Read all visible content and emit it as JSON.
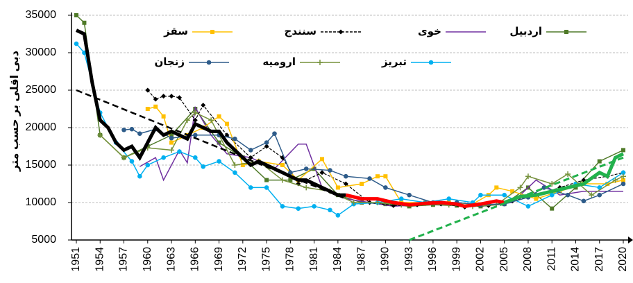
{
  "chart_data": {
    "type": "line",
    "y_label": "دبی اقلی بر حسب متر",
    "xlim": [
      1951,
      2020
    ],
    "ylim": [
      5000,
      35000
    ],
    "xticks": [
      1951,
      1954,
      1957,
      1960,
      1963,
      1966,
      1969,
      1972,
      1975,
      1978,
      1981,
      1984,
      1987,
      1990,
      1993,
      1996,
      1999,
      2002,
      2005,
      2008,
      2011,
      2014,
      2017,
      2020
    ],
    "yticks": [
      5000,
      10000,
      15000,
      20000,
      25000,
      30000,
      35000
    ],
    "grid": true,
    "series": [
      {
        "name": "اردبیل",
        "color": "#4f7a28",
        "marker": "square",
        "dash": false,
        "width": 1.5,
        "x": [
          1951,
          1952,
          1954,
          1957,
          1960,
          1963,
          1966,
          1969,
          1972,
          1975,
          1978,
          1981,
          1984,
          1987,
          1990,
          1993,
          1996,
          1999,
          2002,
          2005,
          2008,
          2011,
          2014,
          2017,
          2020
        ],
        "values": [
          35000,
          34000,
          19000,
          16000,
          17500,
          19000,
          22500,
          18000,
          16000,
          13000,
          13000,
          14500,
          11000,
          10000,
          9800,
          9500,
          9700,
          9600,
          9500,
          9800,
          12000,
          9200,
          12000,
          15500,
          17000
        ]
      },
      {
        "name": "خوی",
        "color": "#7030a0",
        "marker": "none",
        "dash": false,
        "width": 1.5,
        "x": [
          1959,
          1961,
          1962,
          1964,
          1965,
          1966,
          1968,
          1970,
          1973,
          1976,
          1979,
          1980,
          1982,
          1985,
          1988,
          1991,
          1994,
          1997,
          2000,
          2003,
          2006,
          2009,
          2012,
          2015,
          2018,
          2020
        ],
        "values": [
          14800,
          16000,
          13000,
          17000,
          15300,
          22700,
          19000,
          16500,
          16000,
          14500,
          17800,
          17800,
          12000,
          10500,
          10000,
          9500,
          9700,
          9800,
          9500,
          9700,
          10000,
          13000,
          11000,
          11500,
          11500,
          11500
        ]
      },
      {
        "name": "سنندج",
        "color": "#000000",
        "marker": "diamond",
        "dash": true,
        "width": 1.2,
        "x": [
          1960,
          1961,
          1962,
          1963,
          1964,
          1966,
          1967,
          1970,
          1973,
          1975,
          1977,
          1979,
          1982,
          1985,
          1988,
          1991,
          1994,
          1997,
          2000,
          2003,
          2006,
          2009,
          2012,
          2015,
          2018,
          2020
        ],
        "values": [
          25000,
          23800,
          24200,
          24200,
          24000,
          21000,
          23000,
          19000,
          16000,
          17500,
          16000,
          12500,
          14000,
          12500,
          10000,
          9600,
          9700,
          9800,
          9400,
          9600,
          10200,
          11000,
          12000,
          13000,
          13500,
          14000
        ]
      },
      {
        "name": "سقز",
        "color": "#ffc000",
        "marker": "square",
        "dash": false,
        "width": 1.5,
        "x": [
          1960,
          1961,
          1962,
          1963,
          1965,
          1967,
          1969,
          1970,
          1972,
          1974,
          1977,
          1979,
          1982,
          1984,
          1987,
          1989,
          1990,
          1992,
          1995,
          1998,
          2001,
          2003,
          2004,
          2006,
          2009,
          2012,
          2015,
          2018,
          2020
        ],
        "values": [
          22500,
          22800,
          21500,
          18000,
          19000,
          20000,
          21500,
          20500,
          15000,
          15500,
          15000,
          13000,
          15800,
          12000,
          12500,
          13500,
          13500,
          10000,
          10000,
          10000,
          9800,
          11000,
          12000,
          11500,
          10500,
          11500,
          12500,
          12500,
          13000
        ]
      },
      {
        "name": "تبریز",
        "color": "#00b0f0",
        "marker": "circle",
        "dash": false,
        "width": 1.5,
        "x": [
          1951,
          1952,
          1954,
          1956,
          1958,
          1959,
          1960,
          1962,
          1964,
          1966,
          1967,
          1969,
          1971,
          1973,
          1975,
          1977,
          1979,
          1981,
          1983,
          1984,
          1986,
          1989,
          1992,
          1995,
          1998,
          2001,
          2002,
          2005,
          2008,
          2011,
          2014,
          2017,
          2020
        ],
        "values": [
          31200,
          30000,
          22000,
          18000,
          15500,
          13500,
          15000,
          16000,
          16800,
          16000,
          14800,
          15500,
          14000,
          12000,
          12000,
          9500,
          9200,
          9500,
          9000,
          8300,
          9800,
          10000,
          10500,
          10000,
          10500,
          10000,
          11000,
          11000,
          9500,
          11000,
          12500,
          12000,
          14000
        ]
      },
      {
        "name": "ارومیه",
        "color": "#76923c",
        "marker": "plus",
        "dash": false,
        "width": 1.5,
        "x": [
          1954,
          1957,
          1960,
          1963,
          1965,
          1966,
          1968,
          1971,
          1974,
          1977,
          1980,
          1983,
          1986,
          1989,
          1992,
          1995,
          1998,
          2001,
          2004,
          2007,
          2008,
          2011,
          2013,
          2016,
          2019,
          2020
        ],
        "values": [
          19000,
          16000,
          17300,
          17000,
          21000,
          22000,
          21000,
          15000,
          15500,
          13000,
          12000,
          11500,
          10000,
          10000,
          9700,
          9900,
          9700,
          9500,
          9700,
          12000,
          13500,
          12500,
          13800,
          11000,
          13000,
          13500
        ]
      },
      {
        "name": "زنجان",
        "color": "#2e5c8a",
        "marker": "circle",
        "dash": false,
        "width": 1.5,
        "x": [
          1957,
          1958,
          1959,
          1961,
          1963,
          1966,
          1969,
          1971,
          1973,
          1975,
          1976,
          1978,
          1980,
          1983,
          1985,
          1988,
          1990,
          1993,
          1996,
          1999,
          2002,
          2005,
          2008,
          2010,
          2013,
          2015,
          2017,
          2020
        ],
        "values": [
          19700,
          19800,
          19200,
          19800,
          18600,
          19000,
          19000,
          18500,
          17000,
          18000,
          19200,
          14000,
          14500,
          14300,
          13500,
          13200,
          12000,
          11000,
          10000,
          10000,
          9700,
          9800,
          10700,
          12000,
          11000,
          10200,
          11000,
          12500
        ]
      },
      {
        "color": "#000000",
        "marker": "none",
        "dash": false,
        "width": 5,
        "x": [
          1951,
          1952,
          1953,
          1954,
          1955,
          1956,
          1957,
          1958,
          1959,
          1960,
          1961,
          1962,
          1963,
          1964,
          1965,
          1966,
          1967,
          1968,
          1969,
          1970,
          1971,
          1972,
          1973,
          1974,
          1975,
          1976,
          1977,
          1978,
          1979,
          1980,
          1981,
          1982,
          1983,
          1984,
          1985
        ],
        "values": [
          33000,
          32500,
          26000,
          21000,
          20000,
          18000,
          17000,
          17500,
          16000,
          18000,
          20000,
          19000,
          19500,
          19000,
          18500,
          20500,
          20000,
          19500,
          19500,
          18000,
          17000,
          16000,
          15000,
          15500,
          15000,
          14500,
          14000,
          13500,
          13000,
          13000,
          12500,
          12000,
          11500,
          11000,
          11000
        ]
      },
      {
        "color": "#ff0000",
        "marker": "none",
        "dash": false,
        "width": 5,
        "x": [
          1985,
          1987,
          1989,
          1991,
          1993,
          1995,
          1997,
          1999,
          2000,
          2002,
          2004,
          2005
        ],
        "values": [
          11000,
          10500,
          10500,
          10000,
          9700,
          9900,
          10000,
          9800,
          9500,
          9800,
          10200,
          10000
        ]
      },
      {
        "color": "#22b14c",
        "marker": "none",
        "dash": false,
        "width": 5,
        "x": [
          2005,
          2007,
          2009,
          2011,
          2013,
          2015,
          2017,
          2018,
          2019,
          2020
        ],
        "values": [
          10000,
          10800,
          11000,
          11500,
          12000,
          12500,
          14000,
          13500,
          16000,
          16500
        ]
      },
      {
        "color": "#000000",
        "marker": "none",
        "dash": true,
        "width": 2.5,
        "x": [
          1951,
          1985
        ],
        "values": [
          25000,
          10500
        ]
      },
      {
        "color": "#22b14c",
        "marker": "none",
        "dash": true,
        "width": 3,
        "x": [
          1993,
          2020
        ],
        "values": [
          5000,
          16000
        ]
      }
    ]
  }
}
